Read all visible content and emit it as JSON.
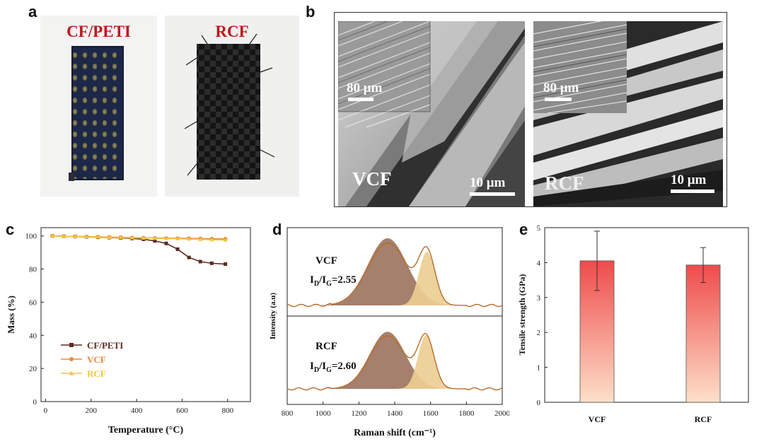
{
  "panels": {
    "a": {
      "letter": "a",
      "left_label": "CF/PETI",
      "right_label": "RCF"
    },
    "b": {
      "letter": "b",
      "left": {
        "main_label": "VCF",
        "inset_scale": "80 μm",
        "main_scale": "10 μm"
      },
      "right": {
        "main_label": "RCF",
        "inset_scale": "80 μm",
        "main_scale": "10 μm"
      }
    },
    "c": {
      "letter": "c"
    },
    "d": {
      "letter": "d",
      "top_label": "VCF",
      "top_ratio": "=2.55",
      "bottom_label": "RCF",
      "bottom_ratio": "=2.60",
      "ratio_prefix": "I",
      "ratio_sub_d": "D",
      "ratio_sep": "/I",
      "ratio_sub_g": "G"
    },
    "e": {
      "letter": "e"
    }
  },
  "colors": {
    "cf_peti": "#5a2c22",
    "vcf": "#f08a3a",
    "rcf": "#f2c640",
    "raman_d_fill": "#a4806d",
    "raman_g_fill": "#ecce93",
    "raman_line": "#c97a2c",
    "bar_top": "#ef4b4b",
    "bar_bottom": "#fde0c9",
    "label_red": "#c0141c"
  },
  "chart_data": [
    {
      "panel": "c",
      "type": "line",
      "xlabel": "Temperature (°C)",
      "ylabel": "Mass (%)",
      "xlim": [
        -20,
        900
      ],
      "ylim": [
        0,
        105
      ],
      "xticks": [
        0,
        200,
        400,
        600,
        800
      ],
      "yticks": [
        0,
        20,
        40,
        60,
        80,
        100
      ],
      "legend_position": "bottom-left",
      "series": [
        {
          "name": "CF/PETI",
          "x": [
            30,
            80,
            130,
            180,
            230,
            280,
            330,
            380,
            430,
            480,
            530,
            580,
            630,
            680,
            730,
            790
          ],
          "y": [
            100,
            99.8,
            99.6,
            99.4,
            99.2,
            99.0,
            98.8,
            98.5,
            98.0,
            97.0,
            95.5,
            92,
            87,
            84.5,
            83.5,
            83
          ]
        },
        {
          "name": "VCF",
          "x": [
            30,
            80,
            130,
            180,
            230,
            280,
            330,
            380,
            430,
            480,
            530,
            580,
            630,
            680,
            730,
            790
          ],
          "y": [
            100,
            99.8,
            99.7,
            99.6,
            99.5,
            99.3,
            99.2,
            99.0,
            98.9,
            98.8,
            98.7,
            98.6,
            98.5,
            98.4,
            98.3,
            98.2
          ]
        },
        {
          "name": "RCF",
          "x": [
            30,
            80,
            130,
            180,
            230,
            280,
            330,
            380,
            430,
            480,
            530,
            580,
            630,
            680,
            730,
            790
          ],
          "y": [
            100,
            99.8,
            99.6,
            99.5,
            99.3,
            99.1,
            99.0,
            98.9,
            98.7,
            98.6,
            98.4,
            98.3,
            98.1,
            97.9,
            97.7,
            97.5
          ]
        }
      ]
    },
    {
      "panel": "d",
      "type": "area",
      "xlabel": "Raman shift (cm⁻¹)",
      "ylabel": "Intensity (a.u)",
      "xlim": [
        800,
        2000
      ],
      "xticks": [
        800,
        1000,
        1200,
        1400,
        1600,
        1800,
        2000
      ],
      "spectra": [
        {
          "name": "VCF",
          "d_center": 1360,
          "d_width": 110,
          "d_height": 1.0,
          "g_center": 1580,
          "g_width": 45,
          "g_height": 0.8
        },
        {
          "name": "RCF",
          "d_center": 1360,
          "d_width": 100,
          "d_height": 0.85,
          "g_center": 1575,
          "g_width": 45,
          "g_height": 0.8
        }
      ]
    },
    {
      "panel": "e",
      "type": "bar",
      "ylabel": "Tensile strength (GPa)",
      "ylim": [
        0,
        5
      ],
      "yticks": [
        0,
        1,
        2,
        3,
        4,
        5
      ],
      "categories": [
        "VCF",
        "RCF"
      ],
      "values": [
        4.05,
        3.93
      ],
      "errors": [
        0.85,
        0.5
      ]
    }
  ]
}
